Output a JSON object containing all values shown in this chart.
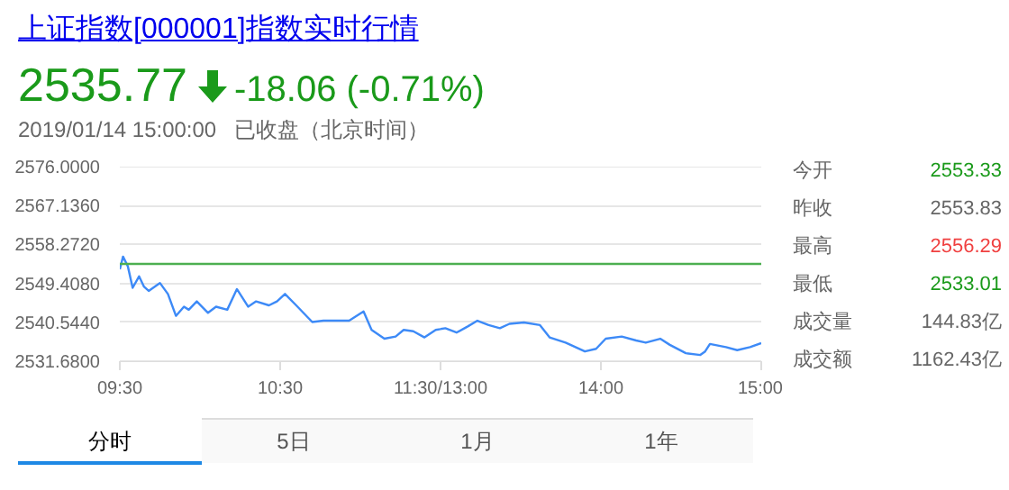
{
  "chart_data": [
    {
      "type": "line",
      "title": "上证指数[000001]指数实时行情",
      "annotations": [
        "2535.77",
        "-18.06 (-0.71%)",
        "2019/01/14 15:00:00",
        "已收盘（北京时间）",
        "今开",
        "2553.33",
        "昨收",
        "2553.83",
        "最高",
        "2556.29",
        "最低",
        "2533.01",
        "成交量",
        "144.83亿",
        "成交额",
        "1162.43亿",
        "分时",
        "5日",
        "1月",
        "1年"
      ],
      "x": [
        9.5,
        9.52,
        9.55,
        9.58,
        9.62,
        9.65,
        9.68,
        9.75,
        9.8,
        9.85,
        9.9,
        9.93,
        9.98,
        10.05,
        10.1,
        10.17,
        10.23,
        10.3,
        10.35,
        10.43,
        10.48,
        10.53,
        10.6,
        10.7,
        10.77,
        10.85,
        10.93,
        11.02,
        11.07,
        11.15,
        11.22,
        11.27,
        11.33,
        11.4,
        11.47,
        11.5
      ],
      "series": [
        {
          "color": "#3d8af7",
          "values": [
            2552.6,
            2555.5,
            2553.3,
            2548.4,
            2551.0,
            2548.7,
            2547.7,
            2549.5,
            2547.0,
            2542.0,
            2544.1,
            2543.4,
            2545.3,
            2542.7,
            2544.1,
            2543.4,
            2548.1,
            2544.1,
            2545.3,
            2544.4,
            2545.3,
            2547.0,
            2544.4,
            2540.6,
            2540.9,
            2540.9,
            2540.9,
            2543.0,
            2538.8,
            2536.8,
            2537.3,
            2538.8,
            2538.5,
            2537.1,
            2538.8,
            2539.0
          ]
        }
      ],
      "xlim": [
        9.5,
        11.5
      ],
      "xticks": [
        {
          "value": 9.5,
          "label": "09:30"
        },
        {
          "value": 10.5,
          "label": "10:30"
        },
        {
          "value": 11.5,
          "label": "11:30/13:00"
        }
      ],
      "ylim": [
        2531.68,
        2576
      ],
      "yticks": [
        {
          "value": 2531.68,
          "label": "2531.6800"
        },
        {
          "value": 2540.544,
          "label": "2540.5440"
        },
        {
          "value": 2549.408,
          "label": "2549.4080"
        },
        {
          "value": 2558.272,
          "label": "2558.2720"
        },
        {
          "value": 2567.136,
          "label": "2567.1360"
        },
        {
          "value": 2576,
          "label": "2576.0000"
        }
      ],
      "ref_lines": [
        {
          "axis": "y",
          "value": 2553.83,
          "color": "#4caf50"
        }
      ],
      "grid": "y",
      "marker": "none",
      "line_style": "solid"
    },
    {
      "type": "line",
      "x": [
        13.0,
        13.03,
        13.1,
        13.17,
        13.23,
        13.3,
        13.37,
        13.43,
        13.52,
        13.62,
        13.68,
        13.78,
        13.9,
        13.97,
        14.03,
        14.13,
        14.22,
        14.28,
        14.37,
        14.43,
        14.53,
        14.62,
        14.65,
        14.68,
        14.78,
        14.85,
        14.93,
        15
      ],
      "series": [
        {
          "color": "#3d8af7",
          "values": [
            2539.0,
            2539.2,
            2538.2,
            2539.6,
            2540.9,
            2539.9,
            2539.2,
            2540.2,
            2540.5,
            2539.9,
            2537.1,
            2535.9,
            2533.9,
            2534.5,
            2536.8,
            2537.3,
            2536.4,
            2535.9,
            2536.8,
            2535.4,
            2533.5,
            2533.1,
            2533.9,
            2535.6,
            2534.9,
            2534.2,
            2534.9,
            2535.8
          ]
        }
      ],
      "xlim": [
        13,
        15
      ],
      "xticks": [
        {
          "value": 14,
          "label": "14:00"
        },
        {
          "value": 15,
          "label": "15:00"
        }
      ],
      "ylim": [
        2531.68,
        2576
      ],
      "yticks": [
        {
          "value": 2531.68,
          "label": null
        },
        {
          "value": 2540.544,
          "label": null
        },
        {
          "value": 2549.408,
          "label": null
        },
        {
          "value": 2558.272,
          "label": null
        },
        {
          "value": 2567.136,
          "label": null
        },
        {
          "value": 2576,
          "label": null
        }
      ],
      "ref_lines": [
        {
          "axis": "y",
          "value": 2553.83,
          "color": "#4caf50"
        }
      ],
      "grid": "y",
      "marker": "none",
      "line_style": "solid",
      "tick_labels": "x"
    }
  ]
}
